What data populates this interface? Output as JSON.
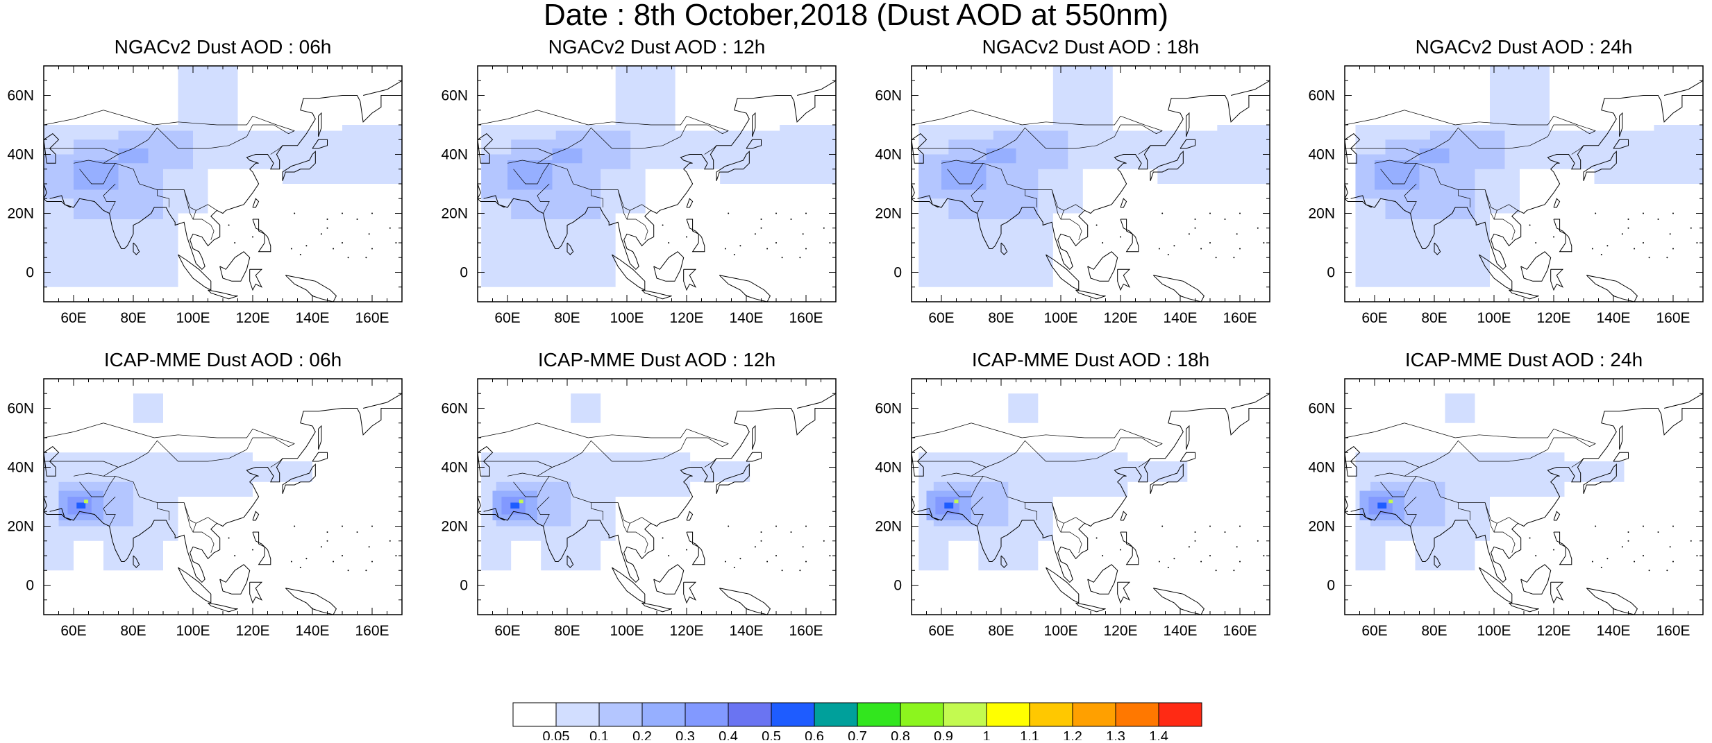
{
  "title": "Date : 8th October,2018 (Dust AOD at 550nm)",
  "axes": {
    "lon_ticks": [
      "60E",
      "80E",
      "100E",
      "120E",
      "140E",
      "160E"
    ],
    "lon_values": [
      60,
      80,
      100,
      120,
      140,
      160
    ],
    "lat_ticks": [
      "60N",
      "40N",
      "20N",
      "0"
    ],
    "lat_values": [
      60,
      40,
      20,
      0
    ],
    "lon_range": [
      50,
      170
    ],
    "lat_range": [
      -10,
      70
    ]
  },
  "panels": [
    {
      "title": "NGACv2 Dust AOD : 06h",
      "model": "NGACv2",
      "hour": "06h"
    },
    {
      "title": "NGACv2 Dust AOD : 12h",
      "model": "NGACv2",
      "hour": "12h"
    },
    {
      "title": "NGACv2 Dust AOD : 18h",
      "model": "NGACv2",
      "hour": "18h"
    },
    {
      "title": "NGACv2 Dust AOD : 24h",
      "model": "NGACv2",
      "hour": "24h"
    },
    {
      "title": "ICAP-MME Dust AOD : 06h",
      "model": "ICAP-MME",
      "hour": "06h"
    },
    {
      "title": "ICAP-MME Dust AOD : 12h",
      "model": "ICAP-MME",
      "hour": "12h"
    },
    {
      "title": "ICAP-MME Dust AOD : 18h",
      "model": "ICAP-MME",
      "hour": "18h"
    },
    {
      "title": "ICAP-MME Dust AOD : 24h",
      "model": "ICAP-MME",
      "hour": "24h"
    }
  ],
  "colorbar": {
    "labels": [
      "0.05",
      "0.1",
      "0.2",
      "0.3",
      "0.4",
      "0.5",
      "0.6",
      "0.7",
      "0.8",
      "0.9",
      "1",
      "1.1",
      "1.2",
      "1.3",
      "1.4"
    ],
    "colors": [
      "#ffffff",
      "#d2deff",
      "#b4c6ff",
      "#96afff",
      "#8299ff",
      "#6a74f2",
      "#1e5cff",
      "#00a09b",
      "#32e61e",
      "#8cf51e",
      "#c3fa50",
      "#ffff00",
      "#ffc800",
      "#ffa000",
      "#ff7800",
      "#ff2a14"
    ]
  }
}
